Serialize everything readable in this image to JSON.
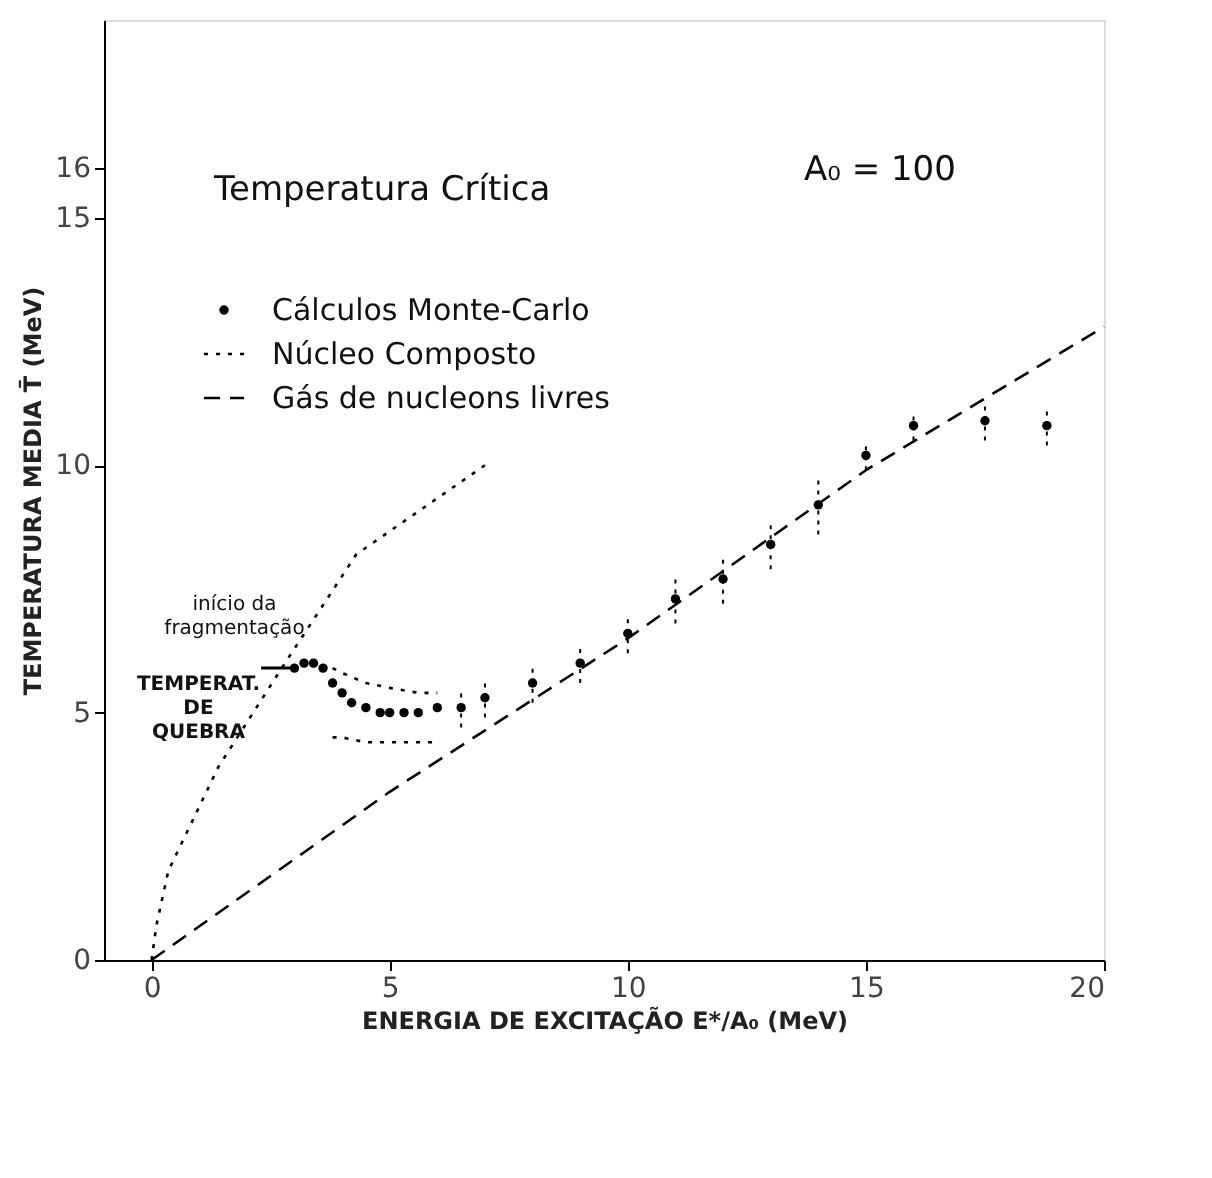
{
  "chart_data": {
    "type": "line",
    "title": "Temperatura Crítica",
    "xlabel": "ENERGIA DE EXCITAÇÃO   E*/A₀ (MeV)",
    "ylabel": "TEMPERATURA MEDIA   T̄ (MeV)",
    "xlim": [
      -1,
      20
    ],
    "ylim": [
      0,
      19
    ],
    "xticks": [
      0,
      5,
      10,
      15,
      20
    ],
    "yticks": [
      0,
      5,
      10,
      15,
      16
    ],
    "legend": "top left",
    "series": [
      {
        "name": "Cálculos Monte-Carlo",
        "type": "scatter",
        "marker": "circle",
        "color": "#000000",
        "x": [
          3.0,
          3.2,
          3.4,
          3.6,
          3.8,
          4.0,
          4.2,
          4.5,
          4.8,
          5.0,
          5.3,
          5.6,
          6.0,
          6.5,
          7,
          8,
          9,
          10,
          11,
          12,
          13,
          14,
          15,
          16,
          17.5,
          18.8
        ],
        "values": [
          5.9,
          6.0,
          6.0,
          5.9,
          5.6,
          5.4,
          5.2,
          5.1,
          5.0,
          5.0,
          5.0,
          5.0,
          5.1,
          5.1,
          5.3,
          5.6,
          6.0,
          6.6,
          7.3,
          7.7,
          8.4,
          9.2,
          10.2,
          10.8,
          10.9,
          10.8
        ],
        "errors": [
          null,
          null,
          null,
          null,
          null,
          null,
          null,
          null,
          null,
          null,
          null,
          null,
          null,
          0.4,
          0.4,
          0.4,
          0.4,
          0.4,
          0.5,
          0.5,
          0.5,
          0.6,
          0.3,
          0.3,
          0.4,
          0.4
        ]
      },
      {
        "name": "Núcleo Composto",
        "line_style": "dotted",
        "color": "#000000",
        "x": [
          0,
          0.1,
          0.35,
          1.4,
          2.8,
          4.3,
          7
        ],
        "values": [
          0,
          0.7,
          1.8,
          3.9,
          6.0,
          8.2,
          10
        ]
      },
      {
        "name": "Gás de nucleons livres",
        "line_style": "dashed",
        "color": "#000000",
        "x": [
          0,
          5,
          10,
          15,
          20
        ],
        "values": [
          0,
          3.4,
          6.5,
          9.9,
          12.8
        ]
      },
      {
        "line_style": "dotted",
        "color": "#000000",
        "x": [
          3.8,
          4.0,
          4.5,
          5.0,
          5.6,
          6.0
        ],
        "values": [
          5.9,
          5.8,
          5.6,
          5.5,
          5.4,
          5.4
        ]
      },
      {
        "line_style": "dotted",
        "color": "#000000",
        "x": [
          3.8,
          4.0,
          4.5,
          5.0,
          5.6,
          6.0
        ],
        "values": [
          4.5,
          4.5,
          4.4,
          4.4,
          4.4,
          4.4
        ]
      }
    ],
    "annotations": [
      "A₀ = 100",
      {
        "text": "início da\nfragmentação",
        "x": 3.0,
        "y": 6.1
      },
      {
        "text": "TEMPERAT.\nDE\nQUEBRA",
        "x": 3.0,
        "y": 5.9
      }
    ]
  }
}
